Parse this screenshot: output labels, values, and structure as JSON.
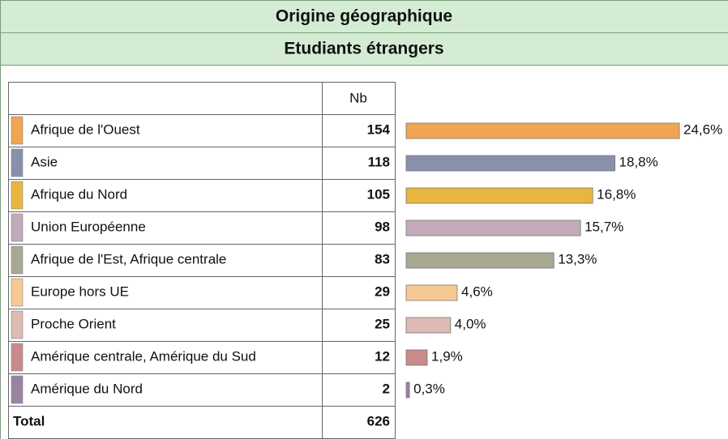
{
  "chart_data": {
    "type": "bar",
    "title": "Origine géographique",
    "subtitle": "Etudiants étrangers",
    "column_header": "Nb",
    "categories": [
      "Afrique de l'Ouest",
      "Asie",
      "Afrique du Nord",
      "Union Européenne",
      "Afrique de l'Est, Afrique centrale",
      "Europe hors UE",
      "Proche Orient",
      "Amérique centrale, Amérique du Sud",
      "Amérique du Nord"
    ],
    "counts": [
      154,
      118,
      105,
      98,
      83,
      29,
      25,
      12,
      2
    ],
    "values": [
      24.6,
      18.8,
      16.8,
      15.7,
      13.3,
      4.6,
      4.0,
      1.9,
      0.3
    ],
    "value_labels": [
      "24,6%",
      "18,8%",
      "16,8%",
      "15,7%",
      "13,3%",
      "4,6%",
      "4,0%",
      "1,9%",
      "0,3%"
    ],
    "colors": [
      "#f0a552",
      "#8890aa",
      "#e8b63e",
      "#c2aabb",
      "#a9a892",
      "#f6c892",
      "#ddbab3",
      "#c98a8a",
      "#9a82a2"
    ],
    "total_label": "Total",
    "total": 626
  }
}
